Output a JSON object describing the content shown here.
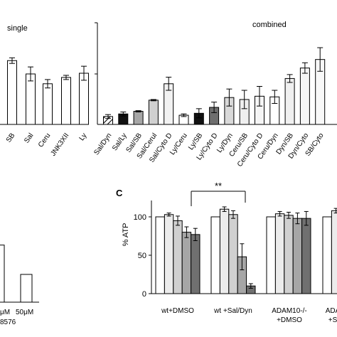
{
  "chart_data": [
    {
      "type": "bar",
      "panel": "single",
      "title": "single",
      "categories": [
        "SB",
        "Sal",
        "Ceru",
        "JNK3XII",
        "Ly"
      ],
      "values": [
        91,
        72,
        58,
        67,
        73
      ],
      "errors": [
        4,
        10,
        6,
        3,
        10
      ],
      "colors": [
        "#ffffff",
        "#ffffff",
        "#ffffff",
        "#ffffff",
        "#ffffff"
      ],
      "ylim": [
        0,
        145
      ],
      "note": "cropped at left edge"
    },
    {
      "type": "bar",
      "panel": "combined",
      "title": "combined",
      "categories": [
        "Sal/Dyn",
        "Sal/Ly",
        "Sal/SB",
        "Sal/Cerul",
        "Sal/Cyto D",
        "Ly/Ceru",
        "Ly/SB",
        "Ly/Cyto D",
        "Ly/Dyn",
        "Ceru/SB",
        "Ceru/Cyto D",
        "Ceru/Dyn",
        "Dyn/SB",
        "Dyn/Cyto",
        "SB/Cyto"
      ],
      "values": [
        12,
        16,
        20,
        37,
        62,
        14,
        17,
        26,
        41,
        38,
        43,
        42,
        70,
        86,
        99
      ],
      "errors": [
        3,
        3,
        1,
        1,
        10,
        2,
        7,
        8,
        13,
        14,
        15,
        10,
        6,
        8,
        18
      ],
      "colors": [
        "#hatched",
        "#111111",
        "#a6a6a6",
        "#d0d0d0",
        "#f2f2f2",
        "#ffffff",
        "#111111",
        "#6e6e6e",
        "#d9d9d9",
        "#efefef",
        "#f5f5f5",
        "#ffffff",
        "#f0f0f0",
        "#f5f5f5",
        "#f8f8f8"
      ],
      "ylim": [
        0,
        155
      ],
      "note": "last label cropped at right edge"
    },
    {
      "type": "bar",
      "panel": "bottom-left (cropped)",
      "categories": [
        "μM",
        "50μM"
      ],
      "category_sublabels": [
        "8576",
        ""
      ],
      "values": [
        72,
        35
      ],
      "ylim": [
        0,
        130
      ]
    },
    {
      "type": "bar",
      "panel_letter": "C",
      "ylabel": "% ATP",
      "yticks": [
        0,
        50,
        100
      ],
      "ylim": [
        0,
        125
      ],
      "group_labels": [
        [
          "wt+DMSO"
        ],
        [
          "wt +Sal/Dyn"
        ],
        [
          "ADAM10-/-",
          "+DMSO"
        ],
        [
          "ADA",
          "+S"
        ]
      ],
      "groups": [
        {
          "values": [
            100,
            103,
            95,
            80,
            77
          ],
          "errors": [
            0,
            2,
            6,
            7,
            8
          ]
        },
        {
          "values": [
            100,
            110,
            103,
            48,
            10
          ],
          "errors": [
            0,
            3,
            5,
            17,
            3
          ]
        },
        {
          "values": [
            100,
            104,
            102,
            98,
            98
          ],
          "errors": [
            0,
            3,
            4,
            7,
            9
          ]
        },
        {
          "values": [
            100,
            108
          ],
          "errors": [
            0,
            3
          ]
        }
      ],
      "bar_shades": [
        "#ffffff",
        "#ececec",
        "#d0d0d0",
        "#a6a6a6",
        "#707070"
      ],
      "significance": {
        "label": "**",
        "between": [
          "wt+DMSO",
          "wt +Sal/Dyn"
        ]
      }
    }
  ]
}
